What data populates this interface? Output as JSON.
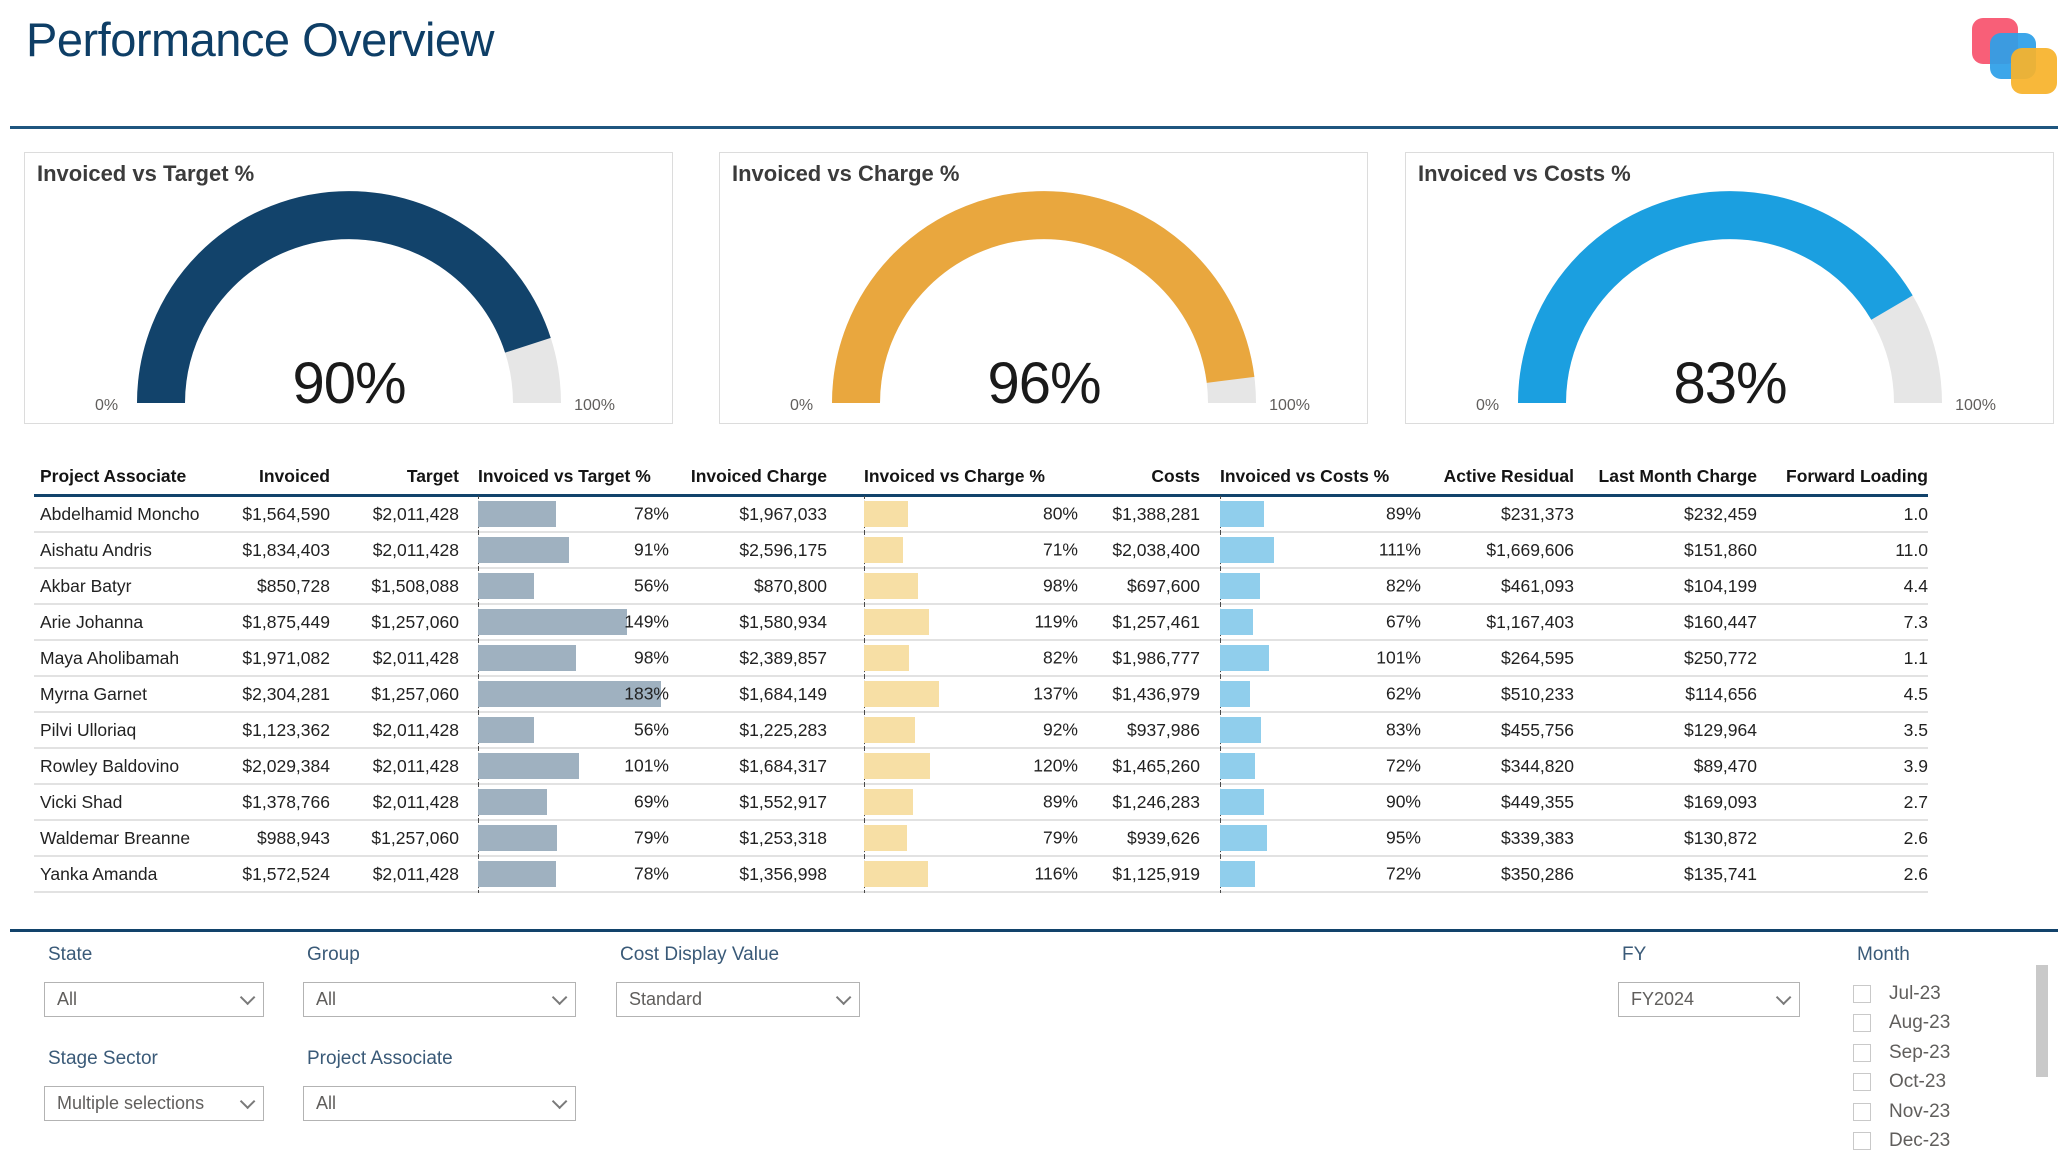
{
  "page": {
    "title": "Performance Overview"
  },
  "colors": {
    "accent_navy": "#12436B",
    "accent_orange": "#E9A73E",
    "accent_blue": "#1B9FE0",
    "gauge_track": "#E6E6E6",
    "bar_target": "#9FB1C0",
    "bar_charge": "#F7DFA5",
    "bar_costs": "#90CEEC",
    "logo_pink": "#F8536E",
    "logo_blue": "#2D9FE8",
    "logo_yellow": "#F7B32B"
  },
  "chart_data": [
    {
      "type": "gauge",
      "title": "Invoiced vs Target %",
      "value": 90,
      "value_label": "90%",
      "min": 0,
      "max": 100,
      "min_label": "0%",
      "max_label": "100%",
      "color": "#12436B"
    },
    {
      "type": "gauge",
      "title": "Invoiced vs Charge %",
      "value": 96,
      "value_label": "96%",
      "min": 0,
      "max": 100,
      "min_label": "0%",
      "max_label": "100%",
      "color": "#E9A73E"
    },
    {
      "type": "gauge",
      "title": "Invoiced vs Costs %",
      "value": 83,
      "value_label": "83%",
      "min": 0,
      "max": 100,
      "min_label": "0%",
      "max_label": "100%",
      "color": "#1B9FE0"
    },
    {
      "type": "table",
      "columns": [
        "Project Associate",
        "Invoiced",
        "Target",
        "Invoiced vs Target %",
        "Invoiced Charge",
        "Invoiced vs Charge %",
        "Costs",
        "Invoiced vs Costs %",
        "Active Residual",
        "Last Month Charge",
        "Forward Loading"
      ],
      "rows": [
        {
          "name": "Abdelhamid Moncho",
          "invoiced": "$1,564,590",
          "target": "$2,011,428",
          "target_pct": 78,
          "charge": "$1,967,033",
          "charge_pct": 80,
          "costs": "$1,388,281",
          "costs_pct": 89,
          "residual": "$231,373",
          "last_month": "$232,459",
          "forward": "1.0"
        },
        {
          "name": "Aishatu Andris",
          "invoiced": "$1,834,403",
          "target": "$2,011,428",
          "target_pct": 91,
          "charge": "$2,596,175",
          "charge_pct": 71,
          "costs": "$2,038,400",
          "costs_pct": 111,
          "residual": "$1,669,606",
          "last_month": "$151,860",
          "forward": "11.0"
        },
        {
          "name": "Akbar Batyr",
          "invoiced": "$850,728",
          "target": "$1,508,088",
          "target_pct": 56,
          "charge": "$870,800",
          "charge_pct": 98,
          "costs": "$697,600",
          "costs_pct": 82,
          "residual": "$461,093",
          "last_month": "$104,199",
          "forward": "4.4"
        },
        {
          "name": "Arie Johanna",
          "invoiced": "$1,875,449",
          "target": "$1,257,060",
          "target_pct": 149,
          "charge": "$1,580,934",
          "charge_pct": 119,
          "costs": "$1,257,461",
          "costs_pct": 67,
          "residual": "$1,167,403",
          "last_month": "$160,447",
          "forward": "7.3"
        },
        {
          "name": "Maya Aholibamah",
          "invoiced": "$1,971,082",
          "target": "$2,011,428",
          "target_pct": 98,
          "charge": "$2,389,857",
          "charge_pct": 82,
          "costs": "$1,986,777",
          "costs_pct": 101,
          "residual": "$264,595",
          "last_month": "$250,772",
          "forward": "1.1"
        },
        {
          "name": "Myrna Garnet",
          "invoiced": "$2,304,281",
          "target": "$1,257,060",
          "target_pct": 183,
          "charge": "$1,684,149",
          "charge_pct": 137,
          "costs": "$1,436,979",
          "costs_pct": 62,
          "residual": "$510,233",
          "last_month": "$114,656",
          "forward": "4.5"
        },
        {
          "name": "Pilvi Ulloriaq",
          "invoiced": "$1,123,362",
          "target": "$2,011,428",
          "target_pct": 56,
          "charge": "$1,225,283",
          "charge_pct": 92,
          "costs": "$937,986",
          "costs_pct": 83,
          "residual": "$455,756",
          "last_month": "$129,964",
          "forward": "3.5"
        },
        {
          "name": "Rowley Baldovino",
          "invoiced": "$2,029,384",
          "target": "$2,011,428",
          "target_pct": 101,
          "charge": "$1,684,317",
          "charge_pct": 120,
          "costs": "$1,465,260",
          "costs_pct": 72,
          "residual": "$344,820",
          "last_month": "$89,470",
          "forward": "3.9"
        },
        {
          "name": "Vicki Shad",
          "invoiced": "$1,378,766",
          "target": "$2,011,428",
          "target_pct": 69,
          "charge": "$1,552,917",
          "charge_pct": 89,
          "costs": "$1,246,283",
          "costs_pct": 90,
          "residual": "$449,355",
          "last_month": "$169,093",
          "forward": "2.7"
        },
        {
          "name": "Waldemar Breanne",
          "invoiced": "$988,943",
          "target": "$1,257,060",
          "target_pct": 79,
          "charge": "$1,253,318",
          "charge_pct": 79,
          "costs": "$939,626",
          "costs_pct": 95,
          "residual": "$339,383",
          "last_month": "$130,872",
          "forward": "2.6"
        },
        {
          "name": "Yanka Amanda",
          "invoiced": "$1,572,524",
          "target": "$2,011,428",
          "target_pct": 78,
          "charge": "$1,356,998",
          "charge_pct": 116,
          "costs": "$1,125,919",
          "costs_pct": 72,
          "residual": "$350,286",
          "last_month": "$135,741",
          "forward": "2.6"
        }
      ]
    }
  ],
  "filters": {
    "state": {
      "label": "State",
      "value": "All"
    },
    "group": {
      "label": "Group",
      "value": "All"
    },
    "cost_display": {
      "label": "Cost Display Value",
      "value": "Standard"
    },
    "fy": {
      "label": "FY",
      "value": "FY2024"
    },
    "stage_sector": {
      "label": "Stage Sector",
      "value": "Multiple selections"
    },
    "project_associate": {
      "label": "Project Associate",
      "value": "All"
    },
    "month": {
      "label": "Month",
      "options": [
        "Jul-23",
        "Aug-23",
        "Sep-23",
        "Oct-23",
        "Nov-23",
        "Dec-23"
      ]
    }
  }
}
